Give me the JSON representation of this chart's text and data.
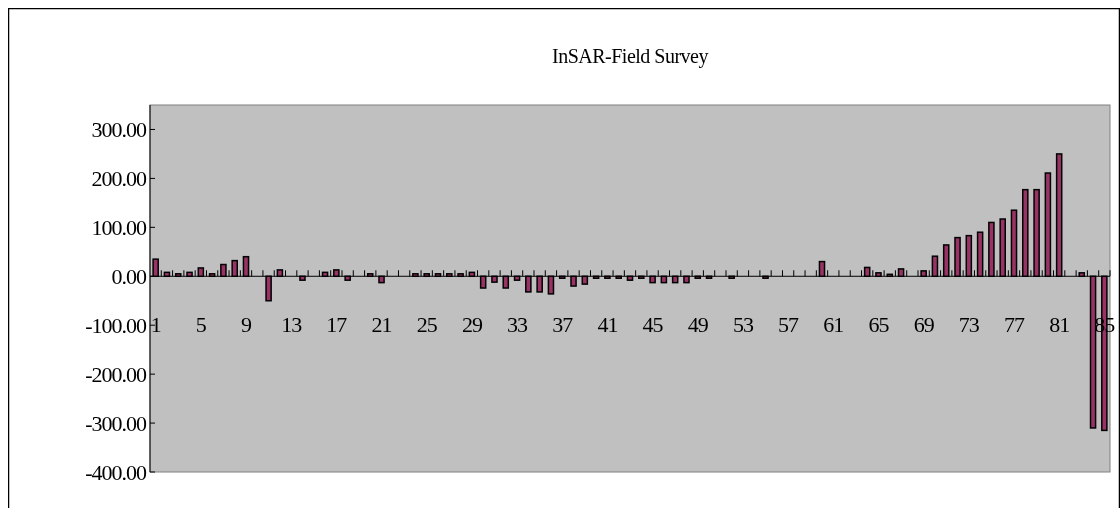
{
  "chart_data": {
    "type": "bar",
    "title": "InSAR-Field Survey",
    "categories": [
      "1",
      null,
      null,
      null,
      "5",
      null,
      null,
      null,
      "9",
      null,
      null,
      null,
      "13",
      null,
      null,
      null,
      "17",
      null,
      null,
      null,
      "21",
      null,
      null,
      null,
      "25",
      null,
      null,
      null,
      "29",
      null,
      null,
      null,
      "33",
      null,
      null,
      null,
      "37",
      null,
      null,
      null,
      "41",
      null,
      null,
      null,
      "45",
      null,
      null,
      null,
      "49",
      null,
      null,
      null,
      "53",
      null,
      null,
      null,
      "57",
      null,
      null,
      null,
      "61",
      null,
      null,
      null,
      "65",
      null,
      null,
      null,
      "69",
      null,
      null,
      null,
      "73",
      null,
      null,
      null,
      "77",
      null,
      null,
      null,
      "81",
      null,
      null,
      null,
      "85"
    ],
    "series": [
      {
        "color": "#993366",
        "values": [
          35,
          8,
          5,
          8,
          17,
          5,
          24,
          32,
          40,
          null,
          -50,
          13,
          null,
          -8,
          null,
          8,
          13,
          -8,
          null,
          5,
          -13,
          null,
          null,
          5,
          5,
          5,
          5,
          5,
          8,
          -24,
          -12,
          -24,
          -8,
          -32,
          -32,
          -36,
          -4,
          -20,
          -16,
          -4,
          -4,
          -4,
          -8,
          -4,
          -13,
          -13,
          -13,
          -13,
          -4,
          -4,
          null,
          -4,
          null,
          null,
          -4,
          null,
          null,
          null,
          null,
          30,
          null,
          null,
          null,
          18,
          7,
          4,
          15,
          null,
          11,
          41,
          64,
          79,
          83,
          90,
          110,
          117,
          135,
          177,
          177,
          211,
          250,
          null,
          7,
          -310,
          -315
        ]
      }
    ],
    "ylim": [
      -400,
      350
    ],
    "yticks": [
      {
        "value": -400,
        "label": "-400.00"
      },
      {
        "value": -300,
        "label": "-300.00"
      },
      {
        "value": -200,
        "label": "-200.00"
      },
      {
        "value": -100,
        "label": "-100.00"
      },
      {
        "value": 0,
        "label": "0.00"
      },
      {
        "value": 100,
        "label": "100.00"
      },
      {
        "value": 200,
        "label": "200.00"
      },
      {
        "value": 300,
        "label": "300.00"
      }
    ],
    "grid": false
  }
}
